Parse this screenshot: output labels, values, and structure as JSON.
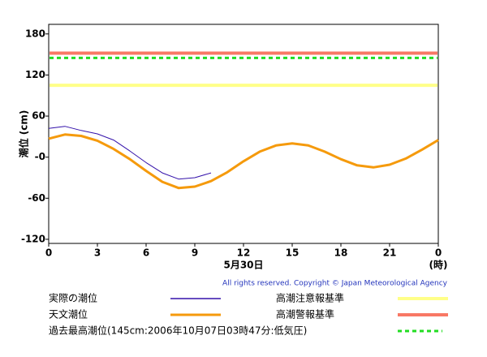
{
  "chart_data": {
    "type": "line",
    "y_label": "潮位 (cm)",
    "x_label": "5月30日",
    "x_unit": "(時)",
    "copyright": "All rights reserved. Copyright © Japan Meteorological Agency",
    "x": [
      0,
      1,
      2,
      3,
      4,
      5,
      6,
      7,
      8,
      9,
      10,
      11,
      12,
      13,
      14,
      15,
      16,
      17,
      18,
      19,
      20,
      21,
      22,
      23,
      24
    ],
    "xlim": [
      0,
      24
    ],
    "xticks": [
      0,
      3,
      6,
      9,
      12,
      15,
      18,
      21,
      {
        "value": 24,
        "label": "0"
      }
    ],
    "ylim": [
      -126,
      194
    ],
    "yticks": [
      180,
      120,
      60,
      {
        "value": 0,
        "label": "-0"
      },
      -60,
      -120
    ],
    "series": [
      {
        "name": "実際の潮位",
        "color": "#3311aa",
        "width": 1,
        "values": [
          42,
          45,
          39,
          34,
          25,
          9,
          -8,
          -23,
          -32,
          -30,
          -23,
          null,
          null,
          null,
          null,
          null,
          null,
          null,
          null,
          null,
          null,
          null,
          null,
          null,
          null
        ]
      },
      {
        "name": "天文潮位",
        "color": "#f59a0c",
        "width": 3,
        "values": [
          27,
          33,
          31,
          24,
          12,
          -3,
          -20,
          -36,
          -45,
          -43,
          -35,
          -22,
          -6,
          8,
          17,
          20,
          17,
          8,
          -3,
          -12,
          -15,
          -11,
          -2,
          11,
          25
        ]
      }
    ],
    "reference_lines": [
      {
        "name": "高潮注意報基準",
        "color": "#ffff88",
        "value": 105,
        "dashed": false
      },
      {
        "name": "高潮警報基準",
        "color": "#f87865",
        "value": 152,
        "dashed": false
      },
      {
        "name": "過去最高潮位(145cm:2006年10月07日03時47分:低気圧)",
        "color": "#22dd22",
        "value": 145,
        "dashed": true
      }
    ]
  }
}
